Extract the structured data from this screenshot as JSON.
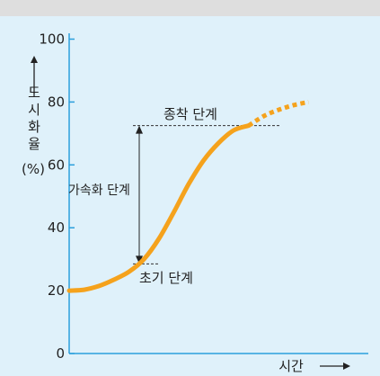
{
  "chart_data": {
    "type": "line",
    "title": "",
    "xlabel": "시간",
    "ylabel": "도시화율",
    "ylabel_unit": "(%)",
    "ylim": [
      0,
      100
    ],
    "yticks": [
      0,
      20,
      40,
      60,
      80,
      100
    ],
    "grid": false,
    "series": [
      {
        "solid": [
          [
            0,
            20
          ],
          [
            5,
            20.3
          ],
          [
            10,
            21.5
          ],
          [
            15,
            23.5
          ],
          [
            20,
            26
          ],
          [
            25,
            30
          ],
          [
            30,
            36.5
          ],
          [
            35,
            45
          ],
          [
            40,
            54
          ],
          [
            45,
            61.5
          ],
          [
            50,
            67
          ],
          [
            55,
            71
          ],
          [
            60,
            72.5
          ]
        ],
        "dotted": [
          [
            60,
            72.5
          ],
          [
            65,
            75.5
          ],
          [
            70,
            77.5
          ],
          [
            75,
            79
          ],
          [
            80,
            80
          ]
        ]
      }
    ],
    "annotations": {
      "early_stage": "초기 단계",
      "acceleration_stage": "가속화 단계",
      "final_stage": "종착 단계",
      "lower_level": 28.5,
      "upper_level": 72.5
    },
    "colors": {
      "background": "#dff1fa",
      "axis": "#2b9fdc",
      "curve": "#f5a21c",
      "top_band": "#dedede",
      "guide": "#333333"
    }
  }
}
